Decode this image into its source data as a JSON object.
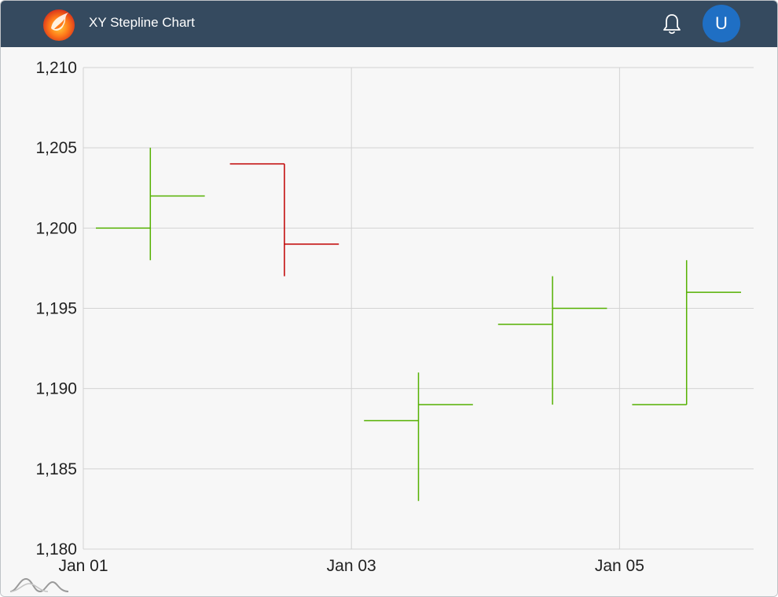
{
  "header": {
    "title": "XY Stepline Chart",
    "avatar_initial": "U",
    "logo_icon": "phoenix-logo-icon",
    "notification_icon": "bell-icon"
  },
  "colors": {
    "header_bg": "#354a5f",
    "increase": "#54b000",
    "decrease": "#c00000",
    "avatar_bg": "#1f6fc4"
  },
  "chart_data": {
    "type": "ohlc",
    "ylim": [
      1180,
      1210
    ],
    "y_ticks": [
      "1,180",
      "1,185",
      "1,190",
      "1,195",
      "1,200",
      "1,205",
      "1,210"
    ],
    "x_ticks": [
      "Jan 01",
      "Jan 03",
      "Jan 05"
    ],
    "grid": true,
    "items": [
      {
        "date": "Jan 01",
        "open": 1200,
        "high": 1205,
        "low": 1198,
        "close": 1202
      },
      {
        "date": "Jan 02",
        "open": 1204,
        "high": 1204,
        "low": 1197,
        "close": 1199
      },
      {
        "date": "Jan 03",
        "open": 1188,
        "high": 1191,
        "low": 1183,
        "close": 1189
      },
      {
        "date": "Jan 04",
        "open": 1194,
        "high": 1197,
        "low": 1189,
        "close": 1195
      },
      {
        "date": "Jan 05",
        "open": 1189,
        "high": 1198,
        "low": 1189,
        "close": 1196
      }
    ]
  }
}
